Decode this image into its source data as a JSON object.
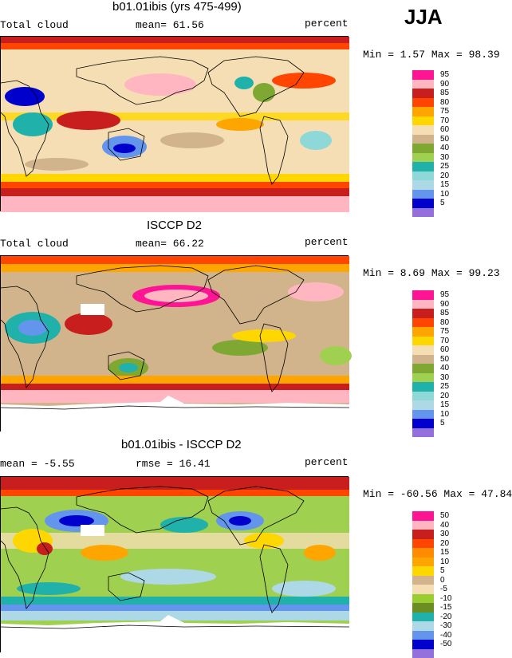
{
  "season": "JJA",
  "panels": [
    {
      "title": "b01.01ibis (yrs 475-499)",
      "left_label": "Total cloud",
      "mid_label": "mean=  61.56",
      "right_label": "percent",
      "minmax": "Min =   1.57 Max =  98.39",
      "legend": [
        {
          "label": "95",
          "color": "#ff1493"
        },
        {
          "label": "90",
          "color": "#ffb6c1"
        },
        {
          "label": "85",
          "color": "#c81e1e"
        },
        {
          "label": "80",
          "color": "#ff4500"
        },
        {
          "label": "75",
          "color": "#ffa500"
        },
        {
          "label": "70",
          "color": "#ffd700"
        },
        {
          "label": "60",
          "color": "#f5deb3"
        },
        {
          "label": "50",
          "color": "#d2b48c"
        },
        {
          "label": "40",
          "color": "#7fa832"
        },
        {
          "label": "30",
          "color": "#a0d050"
        },
        {
          "label": "25",
          "color": "#20b2aa"
        },
        {
          "label": "20",
          "color": "#8fd8d8"
        },
        {
          "label": "15",
          "color": "#add8e6"
        },
        {
          "label": "10",
          "color": "#6495ed"
        },
        {
          "label": "5",
          "color": "#0000cd"
        },
        {
          "label": "",
          "color": "#9370db"
        }
      ]
    },
    {
      "title": "ISCCP D2",
      "left_label": "Total cloud",
      "mid_label": "mean=  66.22",
      "right_label": "percent",
      "minmax": "Min =   8.69 Max =  99.23",
      "legend": [
        {
          "label": "95",
          "color": "#ff1493"
        },
        {
          "label": "90",
          "color": "#ffb6c1"
        },
        {
          "label": "85",
          "color": "#c81e1e"
        },
        {
          "label": "80",
          "color": "#ff4500"
        },
        {
          "label": "75",
          "color": "#ffa500"
        },
        {
          "label": "70",
          "color": "#ffd700"
        },
        {
          "label": "60",
          "color": "#f5deb3"
        },
        {
          "label": "50",
          "color": "#d2b48c"
        },
        {
          "label": "40",
          "color": "#7fa832"
        },
        {
          "label": "30",
          "color": "#a0d050"
        },
        {
          "label": "25",
          "color": "#20b2aa"
        },
        {
          "label": "20",
          "color": "#8fd8d8"
        },
        {
          "label": "15",
          "color": "#add8e6"
        },
        {
          "label": "10",
          "color": "#6495ed"
        },
        {
          "label": "5",
          "color": "#0000cd"
        },
        {
          "label": "",
          "color": "#9370db"
        }
      ]
    },
    {
      "title": "b01.01ibis - ISCCP D2",
      "left_label": "mean =  -5.55",
      "mid_label": "rmse =  16.41",
      "right_label": "percent",
      "minmax": "Min = -60.56 Max =  47.84",
      "legend": [
        {
          "label": "50",
          "color": "#ff1493"
        },
        {
          "label": "40",
          "color": "#ffb6c1"
        },
        {
          "label": "30",
          "color": "#c81e1e"
        },
        {
          "label": "20",
          "color": "#ff4500"
        },
        {
          "label": "15",
          "color": "#ff8c00"
        },
        {
          "label": "10",
          "color": "#ffa500"
        },
        {
          "label": "5",
          "color": "#ffd700"
        },
        {
          "label": "0",
          "color": "#d2b48c"
        },
        {
          "label": "-5",
          "color": "#f5deb3"
        },
        {
          "label": "-10",
          "color": "#9acd32"
        },
        {
          "label": "-15",
          "color": "#6b8e23"
        },
        {
          "label": "-20",
          "color": "#20b2aa"
        },
        {
          "label": "-30",
          "color": "#add8e6"
        },
        {
          "label": "-40",
          "color": "#6495ed"
        },
        {
          "label": "-50",
          "color": "#0000cd"
        },
        {
          "label": "",
          "color": "#9370db"
        }
      ]
    }
  ]
}
